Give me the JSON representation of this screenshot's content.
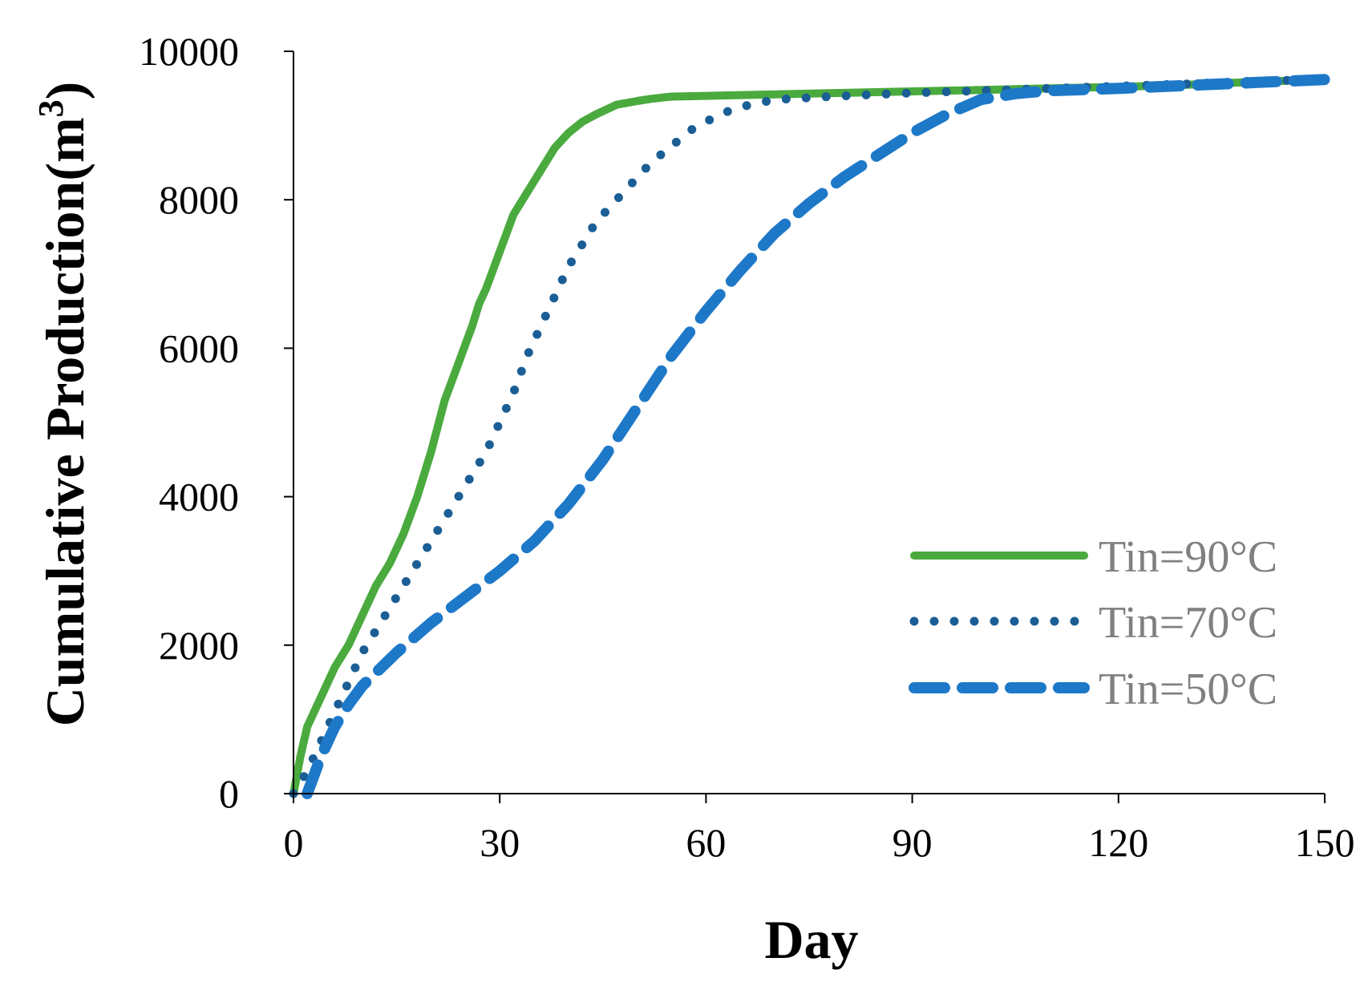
{
  "chart_data": {
    "type": "line",
    "title": "",
    "xlabel": "Day",
    "ylabel": "Cumulative Production(m",
    "ylabel_superscript": "3",
    "ylabel_suffix": ")",
    "xlim": [
      0,
      150
    ],
    "ylim": [
      0,
      10000
    ],
    "xticks": [
      0,
      30,
      60,
      90,
      120,
      150
    ],
    "yticks": [
      0,
      2000,
      4000,
      6000,
      8000,
      10000
    ],
    "xtick_labels": [
      "0",
      "30",
      "60",
      "90",
      "120",
      "150"
    ],
    "ytick_labels": [
      "0",
      "2000",
      "4000",
      "6000",
      "8000",
      "10000"
    ],
    "grid": false,
    "legend_position": "right",
    "series": [
      {
        "name": "Tin=90°C",
        "style": "solid",
        "color": "#4aaa3e",
        "x": [
          0,
          1,
          2,
          4,
          6,
          8,
          10,
          12,
          14,
          16,
          18,
          20,
          22,
          24,
          26,
          27,
          28,
          30,
          32,
          34,
          36,
          38,
          40,
          42,
          44,
          47,
          50,
          52,
          54,
          55,
          60,
          70,
          80,
          90,
          100,
          110,
          120,
          130,
          140,
          150
        ],
        "values": [
          0,
          500,
          900,
          1300,
          1700,
          2000,
          2400,
          2800,
          3100,
          3500,
          4000,
          4600,
          5300,
          5800,
          6300,
          6600,
          6800,
          7300,
          7800,
          8100,
          8400,
          8700,
          8900,
          9050,
          9150,
          9280,
          9330,
          9360,
          9380,
          9390,
          9400,
          9420,
          9440,
          9460,
          9480,
          9500,
          9520,
          9550,
          9590,
          9620
        ]
      },
      {
        "name": "Tin=70°C",
        "style": "dotted",
        "color": "#1b5e95",
        "x": [
          0,
          2,
          4,
          6,
          8,
          10,
          12,
          14,
          16,
          18,
          20,
          22,
          24,
          26,
          28,
          30,
          32,
          34,
          36,
          38,
          40,
          42,
          44,
          46,
          48,
          50,
          52,
          54,
          56,
          58,
          60,
          62,
          65,
          70,
          80,
          90,
          100,
          110,
          120,
          130,
          140,
          150
        ],
        "values": [
          0,
          300,
          700,
          1100,
          1500,
          1900,
          2200,
          2500,
          2800,
          3100,
          3400,
          3700,
          4000,
          4300,
          4600,
          5000,
          5400,
          5900,
          6300,
          6700,
          7100,
          7400,
          7700,
          7900,
          8100,
          8300,
          8500,
          8650,
          8800,
          8950,
          9050,
          9150,
          9250,
          9350,
          9400,
          9440,
          9470,
          9500,
          9530,
          9560,
          9600,
          9620
        ]
      },
      {
        "name": "Tin=50°C",
        "style": "dashed",
        "color": "#1e78c8",
        "x": [
          2,
          4,
          6,
          8,
          10,
          15,
          20,
          25,
          30,
          35,
          40,
          45,
          50,
          55,
          60,
          65,
          70,
          75,
          80,
          85,
          90,
          95,
          100,
          105,
          110,
          120,
          130,
          140,
          150
        ],
        "values": [
          0,
          500,
          900,
          1200,
          1450,
          1900,
          2300,
          2650,
          3000,
          3400,
          3900,
          4500,
          5200,
          5900,
          6500,
          7050,
          7550,
          7950,
          8300,
          8600,
          8900,
          9150,
          9350,
          9430,
          9470,
          9500,
          9540,
          9580,
          9620
        ]
      }
    ]
  }
}
